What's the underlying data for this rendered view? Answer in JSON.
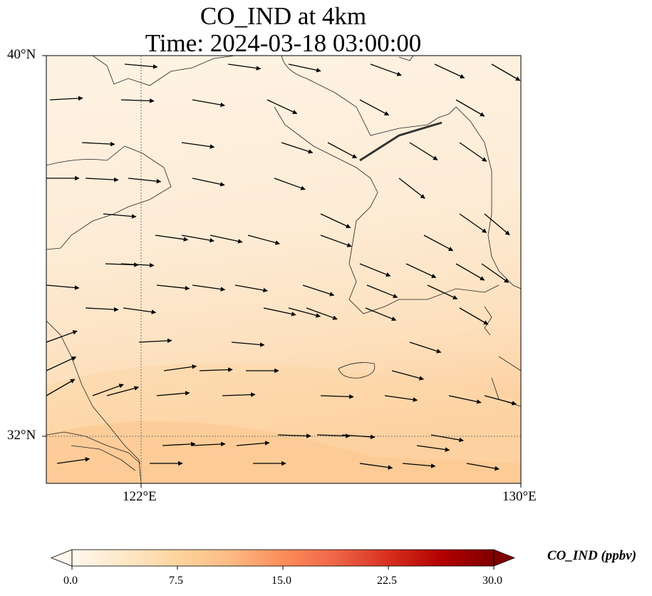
{
  "title": {
    "line1": "CO_IND at 4km",
    "line2": "Time: 2024-03-18 03:00:00"
  },
  "map": {
    "extent": {
      "lon_min": 120,
      "lon_max": 130,
      "lat_min": 31,
      "lat_max": 40
    },
    "lat_labels": [
      "40°N",
      "32°N"
    ],
    "lon_labels": [
      "122°E",
      "130°E"
    ],
    "gridlines": {
      "lon": [
        122,
        130
      ],
      "lat": [
        40,
        32
      ]
    }
  },
  "colorbar": {
    "label": "CO_IND (ppbv)",
    "ticks": [
      "0.0",
      "7.5",
      "15.0",
      "22.5",
      "30.0"
    ],
    "colors": [
      "#fff7ec",
      "#fee8c8",
      "#fdd49e",
      "#fdbb84",
      "#fc8d59",
      "#ef6548",
      "#d7301f",
      "#b30000",
      "#7f0000"
    ]
  }
}
